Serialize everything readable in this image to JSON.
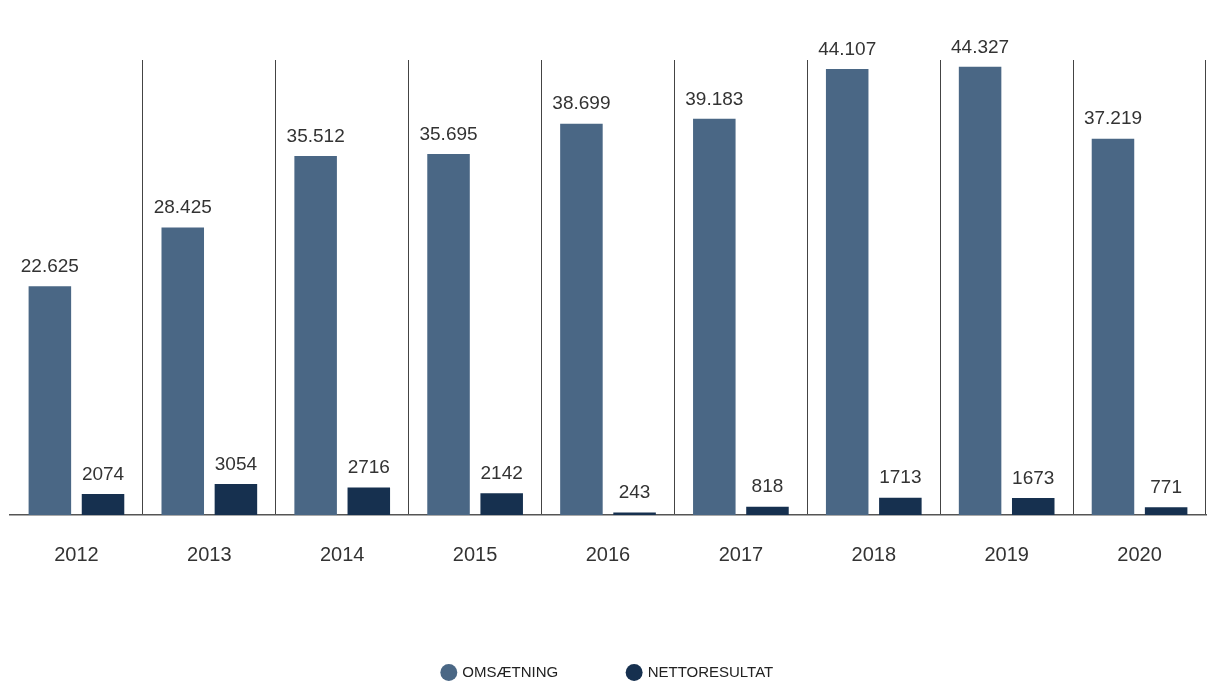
{
  "chart_data": {
    "type": "bar",
    "categories": [
      "2012",
      "2013",
      "2014",
      "2015",
      "2016",
      "2017",
      "2018",
      "2019",
      "2020"
    ],
    "series": [
      {
        "name": "OMSÆTNING",
        "color": "#4a6785",
        "values": [
          22625,
          28425,
          35512,
          35695,
          38699,
          39183,
          44107,
          44327,
          37219
        ],
        "value_labels": [
          "22.625",
          "28.425",
          "35.512",
          "35.695",
          "38.699",
          "39.183",
          "44.107",
          "44.327",
          "37.219"
        ]
      },
      {
        "name": "NETTORESULTAT",
        "color": "#16304f",
        "values": [
          2074,
          3054,
          2716,
          2142,
          243,
          818,
          1713,
          1673,
          771
        ],
        "value_labels": [
          "2074",
          "3054",
          "2716",
          "2142",
          "243",
          "818",
          "1713",
          "1673",
          "771"
        ]
      }
    ],
    "grid": "x",
    "legend": "bottom",
    "tick_labels": "x"
  }
}
